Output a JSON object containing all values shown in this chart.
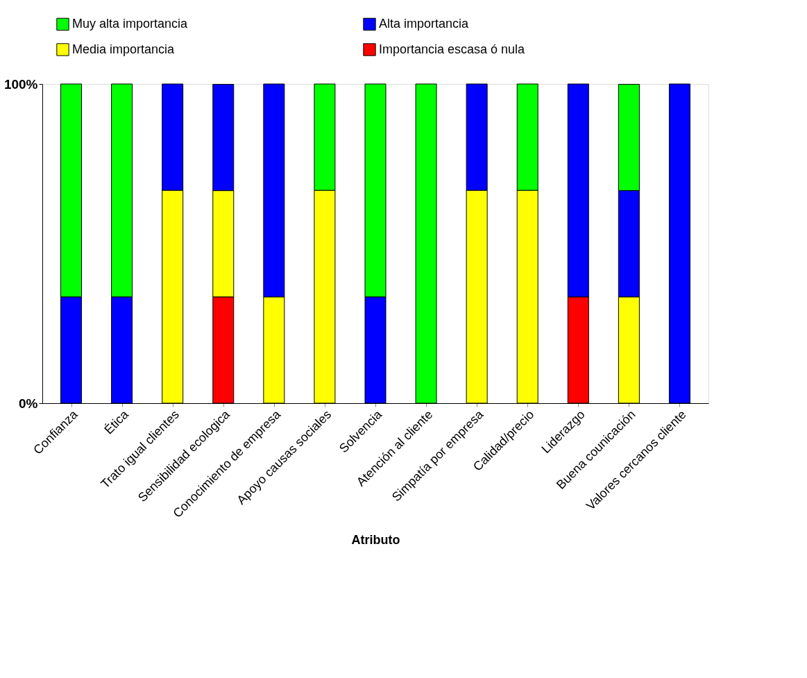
{
  "chart_data": {
    "type": "bar",
    "stacked": true,
    "xlabel": "Atributo",
    "categories": [
      "Confianza",
      "Ética",
      "Trato igual clientes",
      "Sensibilidad ecologica",
      "Conocimiento de empresa",
      "Apoyo causas sociales",
      "Solvencia",
      "Atención al cliente",
      "Simpatía por empresa",
      "Calidad/precio",
      "Liderazgo",
      "Buena counicación",
      "Valores cercanos cliente"
    ],
    "series": [
      {
        "name": "Importancia escasa ó nula",
        "color": "#ff0000",
        "values": [
          null,
          null,
          null,
          33.3,
          null,
          null,
          null,
          null,
          null,
          null,
          33.3,
          null,
          null
        ]
      },
      {
        "name": "Media importancia",
        "color": "#ffff00",
        "values": [
          null,
          null,
          66.7,
          33.3,
          33.3,
          66.7,
          null,
          null,
          66.7,
          66.7,
          null,
          33.3,
          null
        ]
      },
      {
        "name": "Alta importancia",
        "color": "#0000ff",
        "values": [
          33.3,
          33.3,
          33.3,
          33.3,
          66.7,
          null,
          33.3,
          null,
          33.3,
          null,
          66.7,
          33.3,
          100
        ]
      },
      {
        "name": "Muy alta importancia",
        "color": "#00ff00",
        "values": [
          66.7,
          66.7,
          null,
          null,
          null,
          33.3,
          66.7,
          100,
          null,
          33.3,
          null,
          33.3,
          null
        ]
      }
    ],
    "ylim": [
      0,
      100
    ],
    "yticks": [
      {
        "value": 0,
        "label": "0%"
      },
      {
        "value": 100,
        "label": "100%"
      }
    ],
    "legend": "top"
  }
}
